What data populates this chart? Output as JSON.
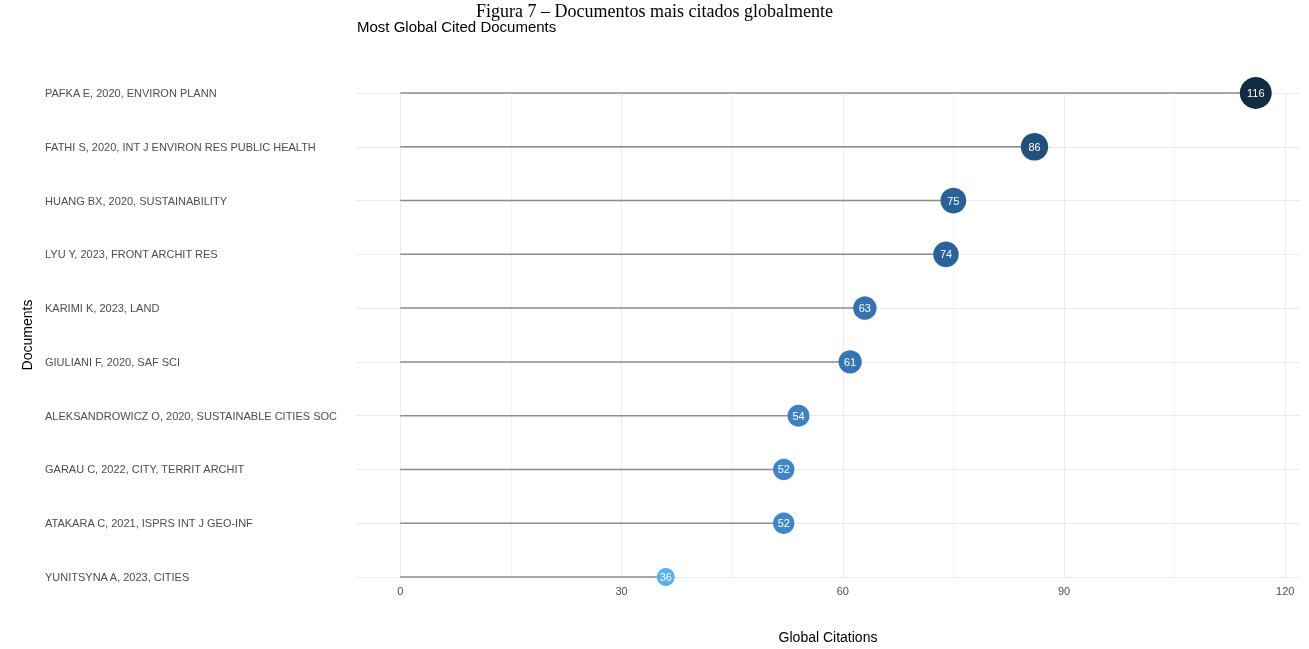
{
  "chart_data": {
    "type": "lollipop",
    "orientation": "horizontal",
    "title": "Most Global Cited Documents",
    "xlabel": "Global Citations",
    "ylabel": "Documents",
    "annotations": [
      "Figura 7 – Documentos mais citados globalmente"
    ],
    "categories": [
      "PAFKA E, 2020, ENVIRON PLANN",
      "FATHI S, 2020, INT J ENVIRON RES PUBLIC HEALTH",
      "HUANG BX, 2020, SUSTAINABILITY",
      "LYU Y, 2023, FRONT ARCHIT RES",
      "KARIMI K, 2023, LAND",
      "GIULIANI F, 2020, SAF SCI",
      "ALEKSANDROWICZ O, 2020, SUSTAINABLE CITIES SOC",
      "GARAU C, 2022, CITY, TERRIT ARCHIT",
      "ATAKARA C, 2021, ISPRS INT J GEO-INF",
      "YUNITSYNA A, 2023, CITIES"
    ],
    "values": [
      116,
      86,
      75,
      74,
      63,
      61,
      54,
      52,
      52,
      36
    ],
    "sizes": [
      1,
      0.74,
      0.65,
      0.64,
      0.54,
      0.53,
      0.47,
      0.45,
      0.45,
      0.31
    ],
    "colors": [
      "#132b43",
      "#21507d",
      "#2a6199",
      "#2b629b",
      "#3472b1",
      "#3675b5",
      "#3d81c5",
      "#3f85ca",
      "#3f85ca",
      "#56b1f7"
    ],
    "xlim": [
      -6,
      122
    ],
    "xticks": [
      0,
      30,
      60,
      90,
      120
    ],
    "grid": true,
    "data_labels": true,
    "marker": "circle"
  }
}
